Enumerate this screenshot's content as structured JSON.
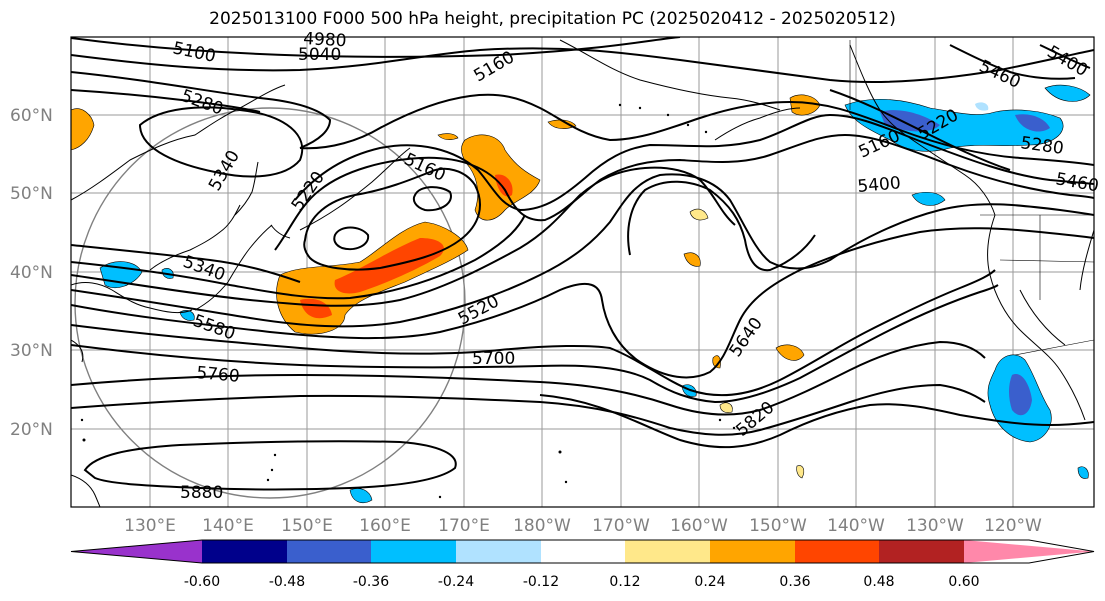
{
  "title": "2025013100 F000 500 hPa height, precipitation PC (2025020412 - 2025020512)",
  "map": {
    "lat_labels": [
      "60°N",
      "50°N",
      "40°N",
      "30°N",
      "20°N"
    ],
    "lon_labels": [
      "130°E",
      "140°E",
      "150°E",
      "160°E",
      "170°E",
      "180°W",
      "170°W",
      "160°W",
      "150°W",
      "140°W",
      "130°W",
      "120°W"
    ],
    "contour_labels": [
      "5100",
      "4980",
      "5040",
      "5160",
      "5160",
      "5280",
      "5340",
      "5220",
      "5160",
      "5220",
      "5280",
      "5400",
      "5460",
      "5460",
      "5400",
      "5340",
      "5580",
      "5520",
      "5700",
      "5760",
      "5640",
      "5820",
      "5880",
      "5160",
      "5460",
      "5400"
    ]
  },
  "colorbar": {
    "colors": [
      "#9932cc",
      "#00008b",
      "#3a5fcd",
      "#00bfff",
      "#b0e2ff",
      "#ffffff",
      "#ffe88a",
      "#ffa500",
      "#ff4500",
      "#b22222",
      "#ff88aa"
    ],
    "tick_labels": [
      "-0.60",
      "-0.48",
      "-0.36",
      "-0.24",
      "-0.12",
      "0.12",
      "0.24",
      "0.36",
      "0.48",
      "0.60"
    ]
  }
}
